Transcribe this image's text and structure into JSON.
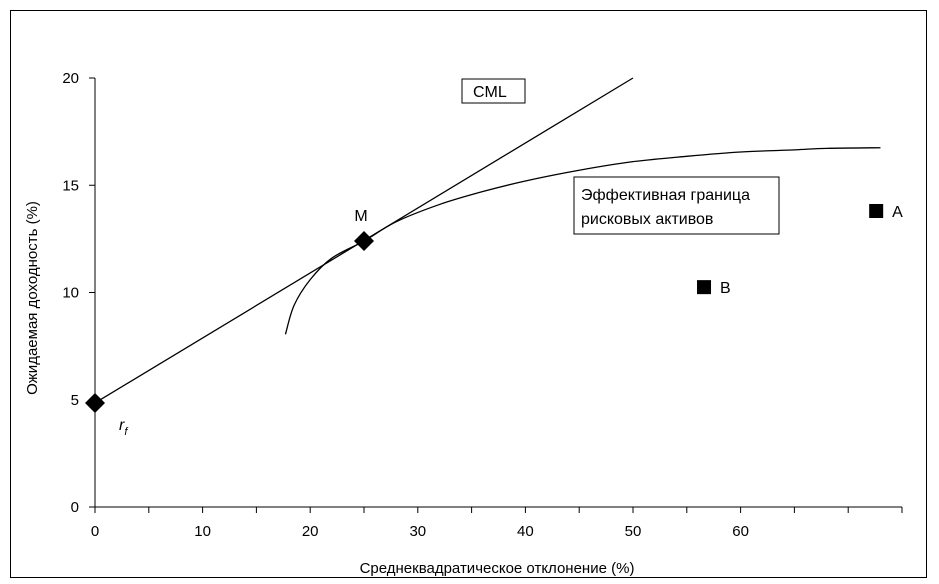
{
  "chart_data": {
    "type": "line",
    "title": "",
    "xlabel": "Среднеквадратическое отклонение (%)",
    "ylabel": "Ожидаемая доходность (%)",
    "xlim": [
      0,
      75
    ],
    "ylim": [
      0,
      20
    ],
    "x_ticks": [
      "0",
      "10",
      "20",
      "30",
      "40",
      "50",
      "60"
    ],
    "x_tick_values": [
      0,
      10,
      20,
      30,
      40,
      50,
      60
    ],
    "y_ticks": [
      "0",
      "5",
      "10",
      "15",
      "20"
    ],
    "y_tick_values": [
      0,
      5,
      10,
      15,
      20
    ],
    "grid": false,
    "series": [
      {
        "name": "CML",
        "kind": "line",
        "x": [
          0,
          50
        ],
        "y": [
          4.85,
          20
        ]
      },
      {
        "name": "Эффективная граница рисковых активов",
        "kind": "curve",
        "x": [
          17.7,
          18.5,
          20.0,
          22.0,
          25.0,
          28.0,
          32.0,
          36.0,
          40.0,
          45.0,
          50.0,
          55.0,
          60.0,
          65.0,
          68.0,
          73.0
        ],
        "y": [
          8.05,
          9.4,
          10.6,
          11.6,
          12.4,
          13.3,
          14.1,
          14.7,
          15.2,
          15.7,
          16.1,
          16.35,
          16.55,
          16.65,
          16.72,
          16.75
        ]
      }
    ],
    "points": [
      {
        "id": "rf",
        "label": "r",
        "label_sub": "f",
        "x": 0,
        "y": 4.85,
        "marker": "diamond"
      },
      {
        "id": "m",
        "label": "M",
        "x": 25,
        "y": 12.4,
        "marker": "diamond"
      },
      {
        "id": "a",
        "label": "A",
        "x": 72.6,
        "y": 13.8,
        "marker": "square"
      },
      {
        "id": "b",
        "label": "B",
        "x": 56.6,
        "y": 10.25,
        "marker": "square"
      }
    ],
    "annotations": {
      "cml_box": "CML",
      "frontier_box_line1": "Эффективная граница",
      "frontier_box_line2": "рисковых активов"
    }
  }
}
